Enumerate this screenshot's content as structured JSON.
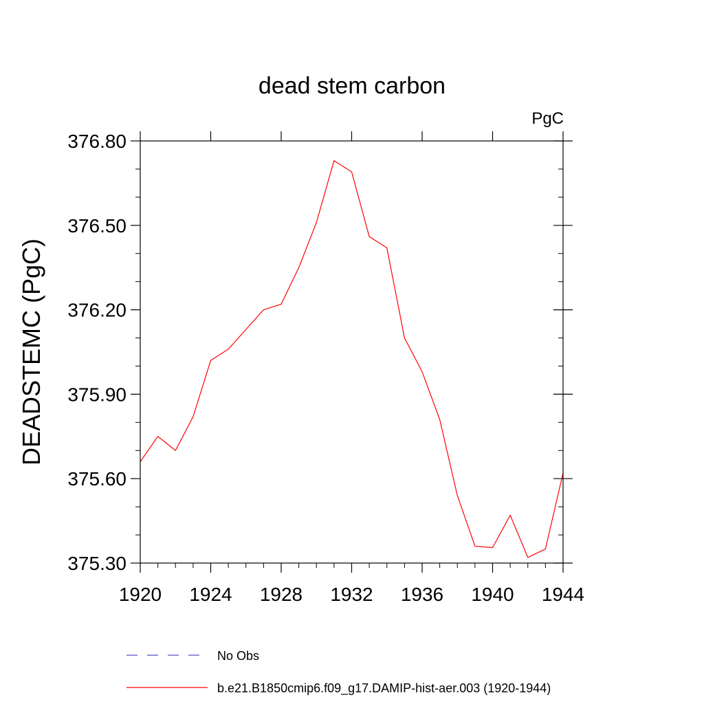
{
  "chart_data": {
    "type": "line",
    "title": "dead stem carbon",
    "units_label": "PgC",
    "ylabel": "DEADSTEMC  (PgC)",
    "xlabel": "",
    "xlim": [
      1920,
      1944
    ],
    "ylim": [
      375.3,
      376.8
    ],
    "x_ticks": [
      "1920",
      "1924",
      "1928",
      "1932",
      "1936",
      "1940",
      "1944"
    ],
    "y_ticks": [
      "375.30",
      "375.60",
      "375.90",
      "376.20",
      "376.50",
      "376.80"
    ],
    "x": [
      1920,
      1921,
      1922,
      1923,
      1924,
      1925,
      1926,
      1927,
      1928,
      1929,
      1930,
      1931,
      1932,
      1933,
      1934,
      1935,
      1936,
      1937,
      1938,
      1939,
      1940,
      1941,
      1942,
      1943,
      1944
    ],
    "series": [
      {
        "name": "b.e21.B1850cmip6.f09_g17.DAMIP-hist-aer.003 (1920-1944)",
        "color": "#ff0000",
        "values": [
          375.66,
          375.75,
          375.7,
          375.82,
          376.02,
          376.06,
          376.13,
          376.2,
          376.22,
          376.35,
          376.51,
          376.73,
          376.69,
          376.46,
          376.42,
          376.1,
          375.98,
          375.81,
          375.54,
          375.36,
          375.355,
          375.47,
          375.32,
          375.35,
          375.62
        ]
      }
    ],
    "legend": {
      "placement": "bottom",
      "entries": [
        {
          "label": "No Obs",
          "color": "#5050c8",
          "style": "dashed"
        },
        {
          "label": "b.e21.B1850cmip6.f09_g17.DAMIP-hist-aer.003 (1920-1944)",
          "color": "#ff0000",
          "style": "solid"
        }
      ]
    }
  }
}
